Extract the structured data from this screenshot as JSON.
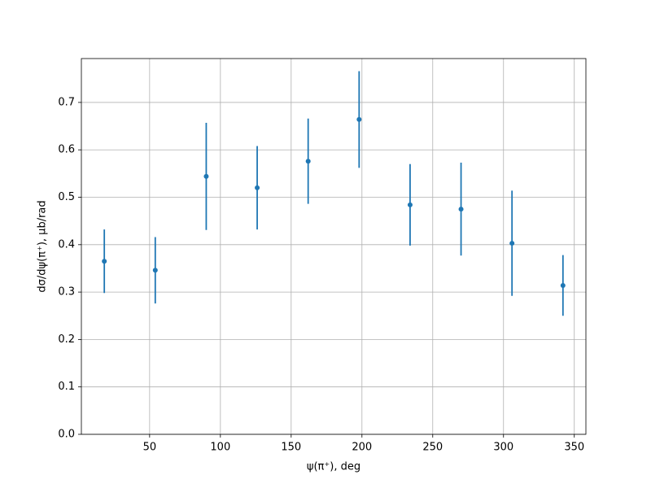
{
  "chart_data": {
    "type": "errorbar",
    "xlabel": "ψ(π⁺), deg",
    "ylabel": "dσ/dψ(π⁺), μb/rad",
    "x": [
      18,
      54,
      90,
      126,
      162,
      198,
      234,
      270,
      306,
      342
    ],
    "values": [
      0.365,
      0.346,
      0.544,
      0.52,
      0.576,
      0.664,
      0.484,
      0.475,
      0.403,
      0.314
    ],
    "errors": [
      0.067,
      0.07,
      0.113,
      0.088,
      0.09,
      0.102,
      0.086,
      0.098,
      0.111,
      0.064
    ],
    "color": "#1f77b4",
    "xlim": [
      1.8,
      358.2
    ],
    "xticks": [
      50,
      100,
      150,
      200,
      250,
      300,
      350
    ],
    "ylim": [
      0,
      0.7925
    ],
    "yticks": [
      {
        "value": 0,
        "label": "0.0"
      },
      0.1,
      0.2,
      0.3,
      0.4,
      0.5,
      0.6,
      0.7
    ],
    "grid": true
  }
}
